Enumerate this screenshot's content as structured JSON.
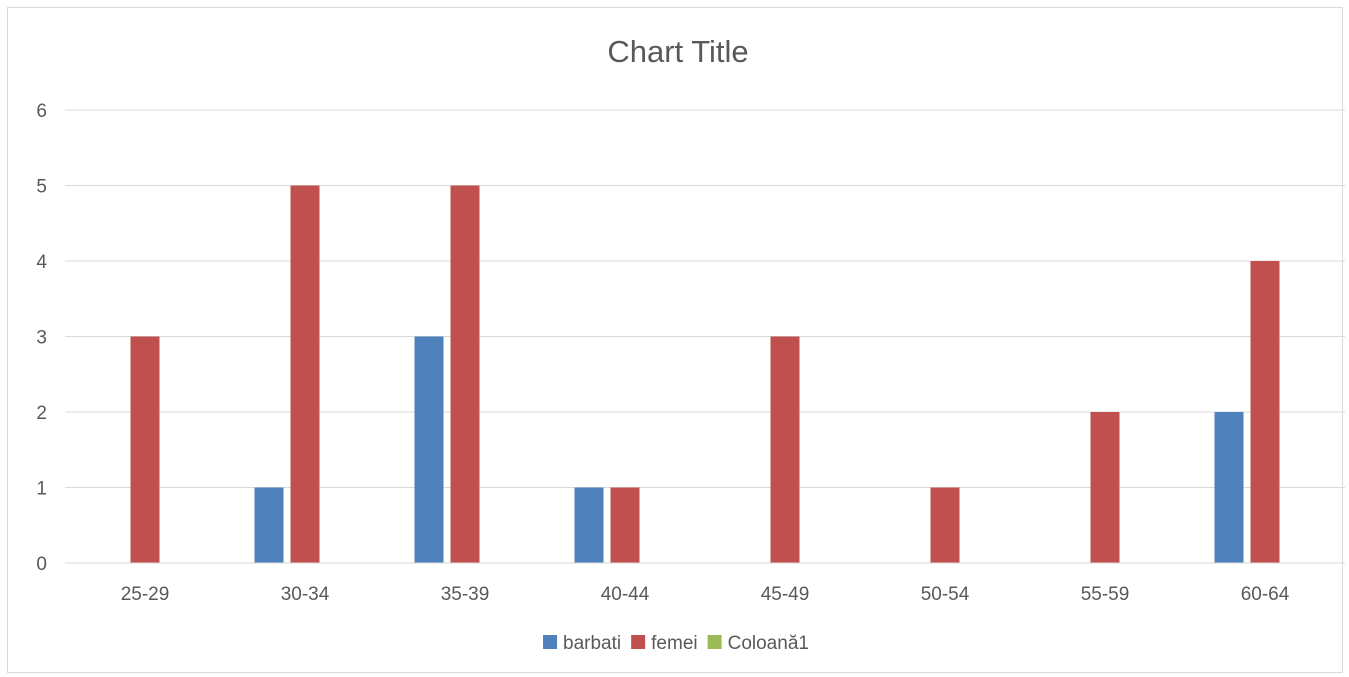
{
  "chart_data": {
    "type": "bar",
    "title": "Chart Title",
    "xlabel": "",
    "ylabel": "",
    "categories": [
      "25-29",
      "30-34",
      "35-39",
      "40-44",
      "45-49",
      "50-54",
      "55-59",
      "60-64"
    ],
    "series": [
      {
        "name": "barbati",
        "color": "#4F81BD",
        "values": [
          0,
          1,
          3,
          1,
          0,
          0,
          0,
          2
        ]
      },
      {
        "name": "femei",
        "color": "#C0504D",
        "values": [
          3,
          5,
          5,
          1,
          3,
          1,
          2,
          4
        ]
      },
      {
        "name": "Coloană1",
        "color": "#9BBB59",
        "values": [
          0,
          0,
          0,
          0,
          0,
          0,
          0,
          0
        ]
      }
    ],
    "ylim": [
      0,
      6
    ],
    "yticks": [
      0,
      1,
      2,
      3,
      4,
      5,
      6
    ],
    "grid": true,
    "legend": "bottom"
  }
}
